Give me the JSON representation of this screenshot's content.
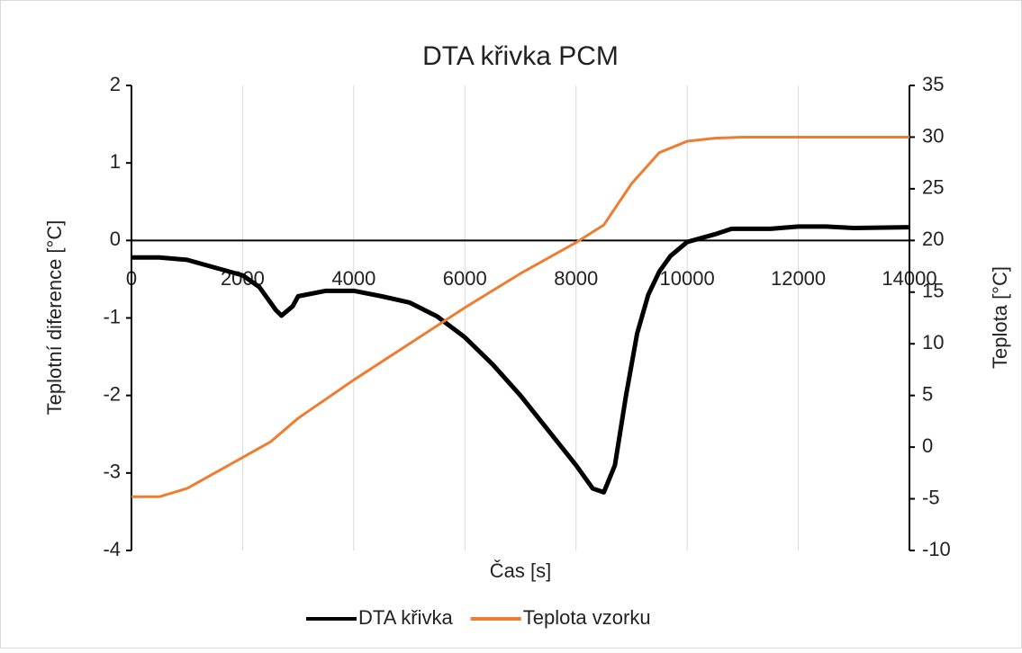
{
  "chart_data": {
    "type": "line",
    "title": "DTA křivka PCM",
    "x_label": "Čas [s]",
    "y_label": "Teplotní diference [°C]",
    "y2_label": "Teplota [°C]",
    "xlim": [
      0,
      14000
    ],
    "xticks": [
      0,
      2000,
      4000,
      6000,
      8000,
      10000,
      12000,
      14000
    ],
    "ylim": [
      -4,
      2
    ],
    "yticks": [
      -4,
      -3,
      -2,
      -1,
      0,
      1,
      2
    ],
    "y2lim": [
      -10,
      35
    ],
    "y2ticks": [
      -10,
      -5,
      0,
      5,
      10,
      15,
      20,
      25,
      30,
      35
    ],
    "grid": true,
    "legend": "bottom",
    "series": [
      {
        "name": "DTA křivka",
        "color": "#000000",
        "x": [
          0,
          500,
          1000,
          1500,
          2000,
          2300,
          2600,
          2700,
          2900,
          3000,
          3500,
          4000,
          4500,
          5000,
          5500,
          6000,
          6500,
          7000,
          7500,
          8000,
          8300,
          8500,
          8700,
          8900,
          9100,
          9300,
          9500,
          9700,
          10000,
          10500,
          10800,
          11500,
          12000,
          12500,
          13000,
          14000
        ],
        "values": [
          -0.22,
          -0.22,
          -0.25,
          -0.35,
          -0.45,
          -0.6,
          -0.9,
          -0.97,
          -0.85,
          -0.72,
          -0.65,
          -0.65,
          -0.72,
          -0.8,
          -0.98,
          -1.25,
          -1.6,
          -2.0,
          -2.45,
          -2.9,
          -3.2,
          -3.25,
          -2.9,
          -2.0,
          -1.2,
          -0.7,
          -0.4,
          -0.2,
          -0.02,
          0.08,
          0.15,
          0.15,
          0.18,
          0.18,
          0.16,
          0.17
        ]
      },
      {
        "name": "Teplota vzorku",
        "color": "#ed7d31",
        "axis": "y2",
        "x": [
          0,
          500,
          1000,
          1500,
          2000,
          2500,
          3000,
          4000,
          5000,
          6000,
          7000,
          8000,
          8500,
          9000,
          9500,
          10000,
          10500,
          11000,
          14000
        ],
        "values": [
          -4.8,
          -4.8,
          -4,
          -2.5,
          -1,
          0.5,
          2.8,
          6.5,
          10,
          13.5,
          16.8,
          19.8,
          21.5,
          25.5,
          28.5,
          29.6,
          29.9,
          30,
          30
        ]
      }
    ]
  }
}
